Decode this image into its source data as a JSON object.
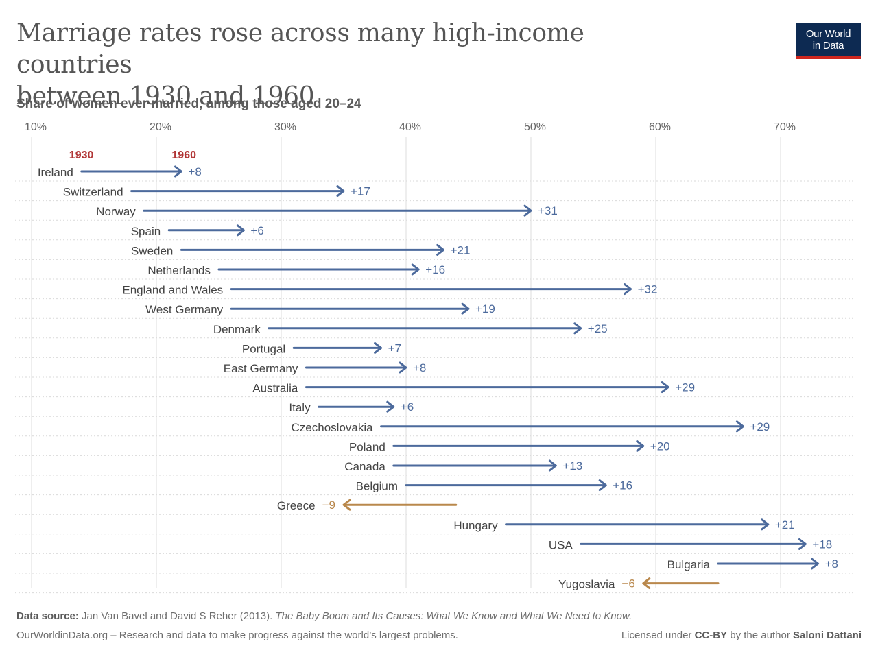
{
  "header": {
    "title_line1": "Marriage rates rose across many high-income countries",
    "title_line2": "between 1930 and 1960",
    "subtitle": "Share of women ever married, among those aged 20–24",
    "logo_line1": "Our World",
    "logo_line2": "in Data"
  },
  "colors": {
    "increase": "#4c6a9c",
    "decrease": "#b9884c",
    "year_label": "#b13636",
    "grid": "#dddddd",
    "text": "#444444"
  },
  "chart_data": {
    "type": "arrow-plot",
    "title": "Marriage rates rose across many high-income countries between 1930 and 1960",
    "subtitle": "Share of women ever married, among those aged 20–24",
    "x_ticks": [
      10,
      20,
      30,
      40,
      50,
      60,
      70
    ],
    "x_tick_labels": [
      "10%",
      "20%",
      "30%",
      "40%",
      "50%",
      "60%",
      "70%"
    ],
    "xlim": [
      10,
      77
    ],
    "start_year_label": "1930",
    "end_year_label": "1960",
    "series": [
      {
        "country": "Ireland",
        "y1930": 14,
        "y1960": 22,
        "change": "+8"
      },
      {
        "country": "Switzerland",
        "y1930": 18,
        "y1960": 35,
        "change": "+17"
      },
      {
        "country": "Norway",
        "y1930": 19,
        "y1960": 50,
        "change": "+31"
      },
      {
        "country": "Spain",
        "y1930": 21,
        "y1960": 27,
        "change": "+6"
      },
      {
        "country": "Sweden",
        "y1930": 22,
        "y1960": 43,
        "change": "+21"
      },
      {
        "country": "Netherlands",
        "y1930": 25,
        "y1960": 41,
        "change": "+16"
      },
      {
        "country": "England and Wales",
        "y1930": 26,
        "y1960": 58,
        "change": "+32"
      },
      {
        "country": "West Germany",
        "y1930": 26,
        "y1960": 45,
        "change": "+19"
      },
      {
        "country": "Denmark",
        "y1930": 29,
        "y1960": 54,
        "change": "+25"
      },
      {
        "country": "Portugal",
        "y1930": 31,
        "y1960": 38,
        "change": "+7"
      },
      {
        "country": "East Germany",
        "y1930": 32,
        "y1960": 40,
        "change": "+8"
      },
      {
        "country": "Australia",
        "y1930": 32,
        "y1960": 61,
        "change": "+29"
      },
      {
        "country": "Italy",
        "y1930": 33,
        "y1960": 39,
        "change": "+6"
      },
      {
        "country": "Czechoslovakia",
        "y1930": 38,
        "y1960": 67,
        "change": "+29"
      },
      {
        "country": "Poland",
        "y1930": 39,
        "y1960": 59,
        "change": "+20"
      },
      {
        "country": "Canada",
        "y1930": 39,
        "y1960": 52,
        "change": "+13"
      },
      {
        "country": "Belgium",
        "y1930": 40,
        "y1960": 56,
        "change": "+16"
      },
      {
        "country": "Greece",
        "y1930": 44,
        "y1960": 35,
        "change": "−9"
      },
      {
        "country": "Hungary",
        "y1930": 48,
        "y1960": 69,
        "change": "+21"
      },
      {
        "country": "USA",
        "y1930": 54,
        "y1960": 72,
        "change": "+18"
      },
      {
        "country": "Bulgaria",
        "y1930": 65,
        "y1960": 73,
        "change": "+8"
      },
      {
        "country": "Yugoslavia",
        "y1930": 65,
        "y1960": 59,
        "change": "−6"
      }
    ]
  },
  "footer": {
    "source_label": "Data source:",
    "source_text": "Jan Van Bavel and David S Reher (2013).",
    "source_title": "The Baby Boom and Its Causes: What We Know and What We Need to Know.",
    "site_text": "OurWorldinData.org – Research and data to make progress against the world’s largest problems.",
    "license_prefix": "Licensed under",
    "license_name": "CC-BY",
    "license_middle": "by the author",
    "author": "Saloni Dattani"
  }
}
